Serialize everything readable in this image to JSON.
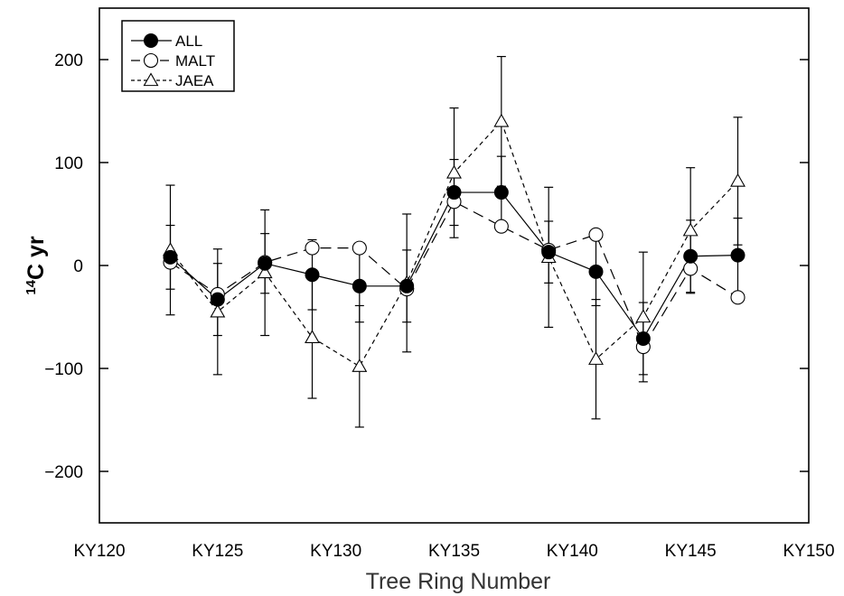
{
  "chart_data": {
    "type": "scatter",
    "xlabel": "Tree Ring Number",
    "ylabel_sup": "14",
    "ylabel_main": "C yr",
    "x_ticks": [
      120,
      125,
      130,
      135,
      140,
      145,
      150
    ],
    "x_tick_labels": [
      "KY120",
      "KY125",
      "KY130",
      "KY135",
      "KY140",
      "KY145",
      "KY150"
    ],
    "y_ticks": [
      -200,
      -100,
      0,
      100,
      200
    ],
    "y_tick_labels": [
      "−200",
      "−100",
      "0",
      "100",
      "200"
    ],
    "xlim": [
      120,
      150
    ],
    "ylim": [
      -250,
      250
    ],
    "legend_position": "top-left",
    "series": [
      {
        "name": "ALL",
        "marker": "filled-circle",
        "line": "solid",
        "x": [
          123,
          125,
          127,
          129,
          131,
          133,
          135,
          137,
          139,
          141,
          143,
          145,
          147
        ],
        "y": [
          8,
          -33,
          2,
          -9,
          -20,
          -20,
          71,
          71,
          13,
          -6,
          -71,
          9,
          10
        ],
        "err": [
          31,
          35,
          29,
          34,
          35,
          35,
          32,
          35,
          30,
          33,
          35,
          35,
          36
        ]
      },
      {
        "name": "MALT",
        "marker": "open-circle",
        "line": "long-dash",
        "x": [
          123,
          125,
          127,
          129,
          131,
          133,
          135,
          137,
          139,
          141,
          143,
          145,
          147
        ],
        "y": [
          3,
          -28,
          3,
          17,
          17,
          -23,
          62,
          38,
          15,
          30,
          -79,
          -3,
          -31
        ],
        "err": [
          0,
          0,
          0,
          0,
          0,
          0,
          0,
          0,
          0,
          0,
          0,
          0,
          0
        ]
      },
      {
        "name": "JAEA",
        "marker": "open-triangle",
        "line": "short-dash",
        "x": [
          123,
          125,
          127,
          129,
          131,
          133,
          135,
          137,
          139,
          141,
          143,
          145,
          147
        ],
        "y": [
          15,
          -45,
          -7,
          -70,
          -98,
          -17,
          90,
          140,
          8,
          -91,
          -50,
          34,
          82
        ],
        "err": [
          63,
          61,
          61,
          59,
          59,
          67,
          63,
          63,
          68,
          58,
          63,
          61,
          62
        ]
      }
    ],
    "colors": {
      "line": "#000000",
      "marker_fill_open": "#ffffff",
      "marker_fill_solid": "#000000"
    }
  }
}
